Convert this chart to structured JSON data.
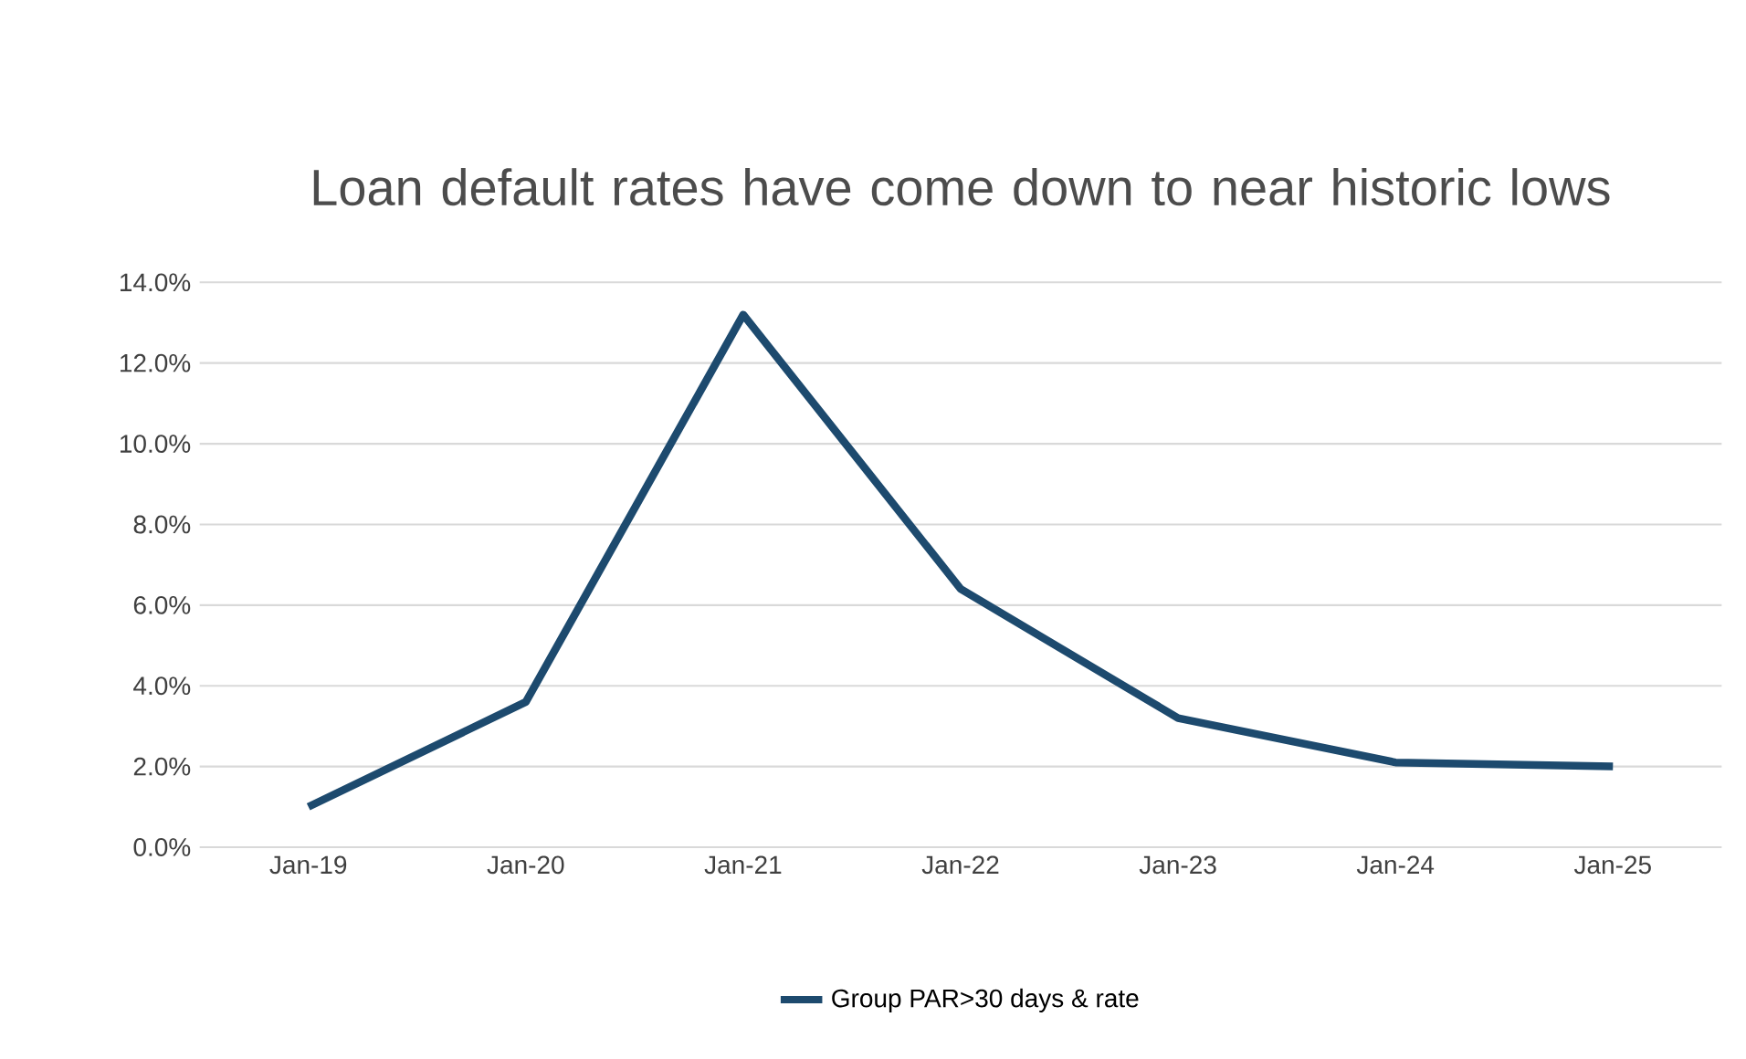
{
  "chart_data": {
    "type": "line",
    "title": "Loan default rates have come down to near historic lows",
    "categories": [
      "Jan-19",
      "Jan-20",
      "Jan-21",
      "Jan-22",
      "Jan-23",
      "Jan-24",
      "Jan-25"
    ],
    "series": [
      {
        "name": "Group PAR>30 days & rate",
        "color": "#1d4a6e",
        "values": [
          1.0,
          3.6,
          13.2,
          6.4,
          3.2,
          2.1,
          2.0
        ]
      }
    ],
    "ylim": [
      0,
      14
    ],
    "yticks": [
      {
        "value": 0,
        "label": "0.0%"
      },
      {
        "value": 2,
        "label": "2.0%"
      },
      {
        "value": 4,
        "label": "4.0%"
      },
      {
        "value": 6,
        "label": "6.0%"
      },
      {
        "value": 8,
        "label": "8.0%"
      },
      {
        "value": 10,
        "label": "10.0%"
      },
      {
        "value": 12,
        "label": "12.0%"
      },
      {
        "value": 14,
        "label": "14.0%"
      }
    ],
    "grid": "y",
    "legend": "bottom"
  }
}
